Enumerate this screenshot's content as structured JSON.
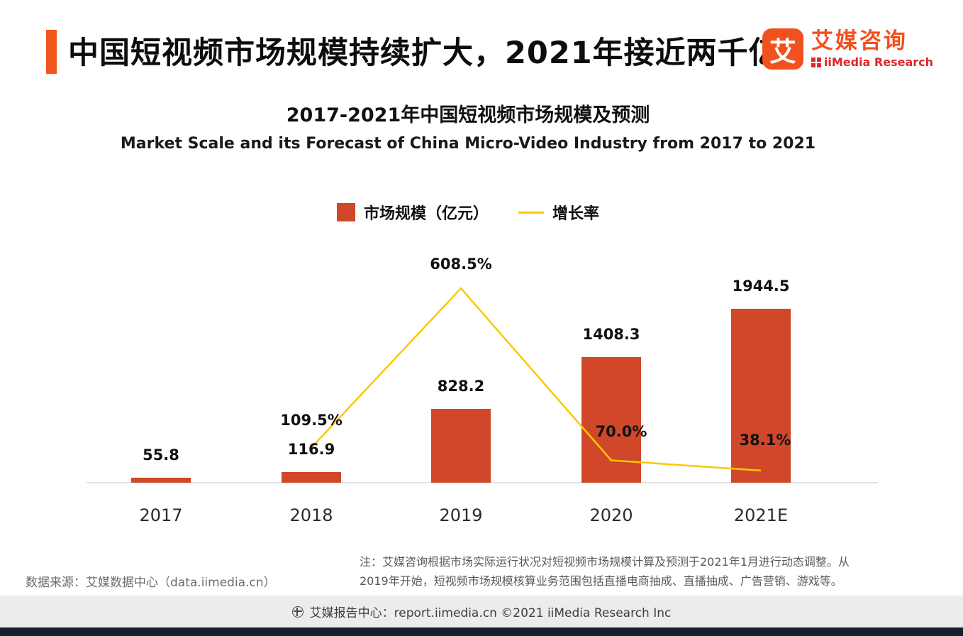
{
  "header": {
    "title": "中国短视频市场规模持续扩大，2021年接近两千亿"
  },
  "logo": {
    "icon_char": "艾",
    "name_cn": "艾媒咨询",
    "name_en": "iiMedia Research"
  },
  "chart_data": {
    "type": "bar",
    "title": "2017-2021年中国短视频市场规模及预测",
    "subtitle": "Market Scale and its Forecast of China Micro-Video Industry from 2017 to 2021",
    "categories": [
      "2017",
      "2018",
      "2019",
      "2020",
      "2021E"
    ],
    "series": [
      {
        "name": "市场规模（亿元）",
        "type": "bar",
        "color": "#d0472a",
        "values": [
          55.8,
          116.9,
          828.2,
          1408.3,
          1944.5
        ]
      },
      {
        "name": "增长率",
        "type": "line",
        "color": "#fcc800",
        "values": [
          null,
          109.5,
          608.5,
          70.0,
          38.1
        ]
      }
    ],
    "bar_labels": [
      "55.8",
      "116.9",
      "828.2",
      "1408.3",
      "1944.5"
    ],
    "line_labels": [
      "",
      "109.5%",
      "608.5%",
      "70.0%",
      "38.1%"
    ],
    "ylim": [
      0,
      2100
    ],
    "legend_position": "top",
    "grid": false
  },
  "source": "数据来源：艾媒数据中心（data.iimedia.cn）",
  "note": "注：艾媒咨询根据市场实际运行状况对短视频市场规模计算及预测于2021年1月进行动态调整。从\n2019年开始，短视频市场规模核算业务范围包括直播电商抽成、直播抽成、广告营销、游戏等。",
  "footer": "艾媒报告中心：report.iimedia.cn  ©2021  iiMedia Research Inc"
}
